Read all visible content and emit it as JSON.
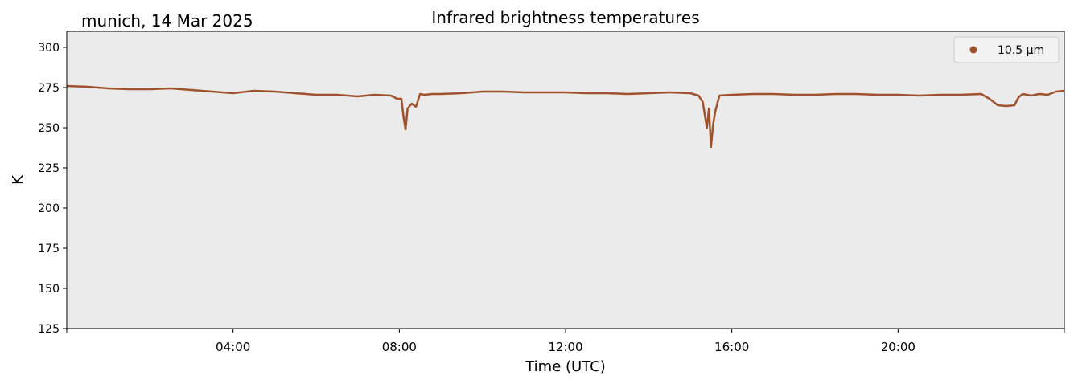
{
  "chart_data": {
    "type": "line",
    "title": "Infrared brightness temperatures",
    "subtitle": "munich, 14 Mar 2025",
    "xlabel": "Time (UTC)",
    "ylabel": "K",
    "xlim_hours": [
      0,
      24
    ],
    "ylim": [
      125,
      310
    ],
    "xticks": [
      {
        "value": 4,
        "label": "04:00"
      },
      {
        "value": 8,
        "label": "08:00"
      },
      {
        "value": 12,
        "label": "12:00"
      },
      {
        "value": 16,
        "label": "16:00"
      },
      {
        "value": 20,
        "label": "20:00"
      }
    ],
    "yticks": [
      125,
      150,
      175,
      200,
      225,
      250,
      275,
      300
    ],
    "grid": false,
    "legend_position": "top-right",
    "background_color": "#ebebeb",
    "series": [
      {
        "name": "10.5 µm",
        "color": "#a0522d",
        "x_hours": [
          0,
          0.5,
          1,
          1.5,
          2,
          2.5,
          3,
          3.5,
          4,
          4.5,
          5,
          5.5,
          6,
          6.5,
          7,
          7.4,
          7.8,
          7.95,
          8.05,
          8.1,
          8.15,
          8.2,
          8.3,
          8.4,
          8.5,
          8.6,
          8.8,
          9,
          9.5,
          10,
          10.5,
          11,
          11.5,
          12,
          12.5,
          13,
          13.5,
          14,
          14.5,
          15,
          15.2,
          15.3,
          15.4,
          15.45,
          15.5,
          15.55,
          15.6,
          15.7,
          16,
          16.5,
          17,
          17.5,
          18,
          18.5,
          19,
          19.5,
          20,
          20.5,
          21,
          21.5,
          22,
          22.2,
          22.4,
          22.6,
          22.8,
          22.9,
          23,
          23.2,
          23.4,
          23.6,
          23.8,
          24
        ],
        "values": [
          276,
          275.5,
          274.5,
          274,
          274,
          274.5,
          273.5,
          272.5,
          271.5,
          273,
          272.5,
          271.5,
          270.5,
          270.5,
          269.5,
          270.5,
          270,
          268,
          268,
          257,
          249,
          262,
          265,
          263,
          271,
          270.5,
          271,
          271,
          271.5,
          272.5,
          272.5,
          272,
          272,
          272,
          271.5,
          271.5,
          271,
          271.5,
          272,
          271.5,
          270,
          266,
          250,
          262,
          238,
          252,
          260,
          270,
          270.5,
          271,
          271,
          270.5,
          270.5,
          271,
          271,
          270.5,
          270.5,
          270,
          270.5,
          270.5,
          271,
          268,
          264,
          263.5,
          264,
          269,
          271,
          270,
          271,
          270.5,
          272.5,
          273
        ]
      }
    ]
  }
}
